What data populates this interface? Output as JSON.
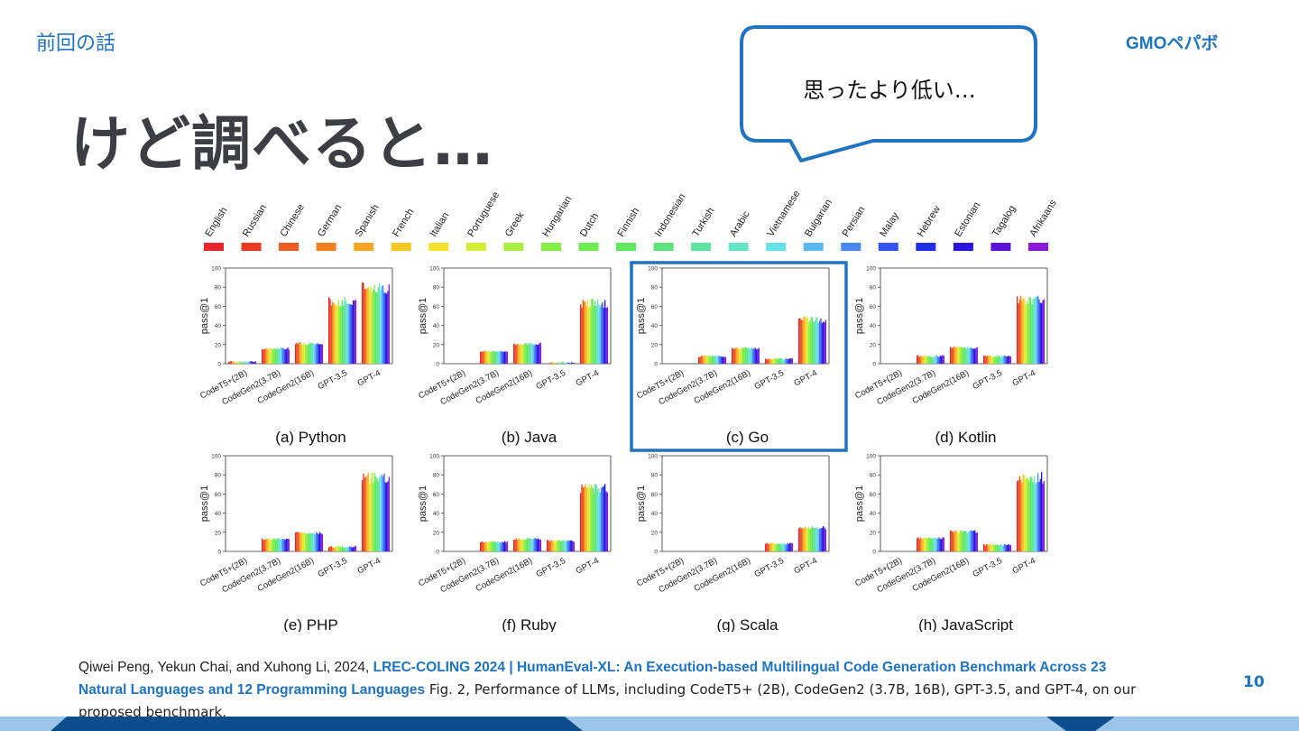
{
  "slide": {
    "section": "前回の話",
    "title": "けど調べると…",
    "bubble_text": "思ったより低い…",
    "page_number": "10",
    "logo": {
      "text": "GMOペパボ",
      "color": "#1f73c1"
    },
    "colors": {
      "accent": "#1f73c1",
      "title": "#3b3f45",
      "footer_dark": "#0e4d8c",
      "footer_light": "#9cc3e8"
    }
  },
  "reference": {
    "authors": "Qiwei Peng, Yekun Chai, and Xuhong Li, 2024, ",
    "link_text": "LREC-COLING 2024 | HumanEval-XL: An Execution-based Multilingual Code Generation Benchmark Across 23 Natural Languages and 12 Programming Languages",
    "caption": " Fig.  2,  Performance of LLMs, including CodeT5+ (2B), CodeGen2 (3.7B, 16B), GPT-3.5, and GPT-4, on our proposed benchmark."
  },
  "chart_data": {
    "type": "bar",
    "legend": {
      "languages": [
        "English",
        "Russian",
        "Chinese",
        "German",
        "Spanish",
        "French",
        "Italian",
        "Portuguese",
        "Greek",
        "Hungarian",
        "Dutch",
        "Finnish",
        "Indonesian",
        "Turkish",
        "Arabic",
        "Vietnamese",
        "Bulgarian",
        "Persian",
        "Malay",
        "Hebrew",
        "Estonian",
        "Tagalog",
        "Afrikaans"
      ],
      "colors": [
        "#e8262b",
        "#ea3a22",
        "#ee5a1f",
        "#f2801e",
        "#f5a623",
        "#f6c623",
        "#f2e32a",
        "#d7ed35",
        "#a9ef3f",
        "#85ef45",
        "#6ded4f",
        "#5fe85e",
        "#5ce47a",
        "#5fe3a0",
        "#64e5c6",
        "#66e1e8",
        "#5bb7f3",
        "#4a87f3",
        "#3256ef",
        "#2030e8",
        "#2a14de",
        "#5a12d8",
        "#8c1ad8"
      ]
    },
    "ylabel": "pass@1",
    "ylim": [
      0,
      100
    ],
    "yticks": [
      0,
      20,
      40,
      60,
      80,
      100
    ],
    "categories": [
      "CodeT5+(2B)",
      "CodeGen2(3.7B)",
      "CodeGen2(16B)",
      "GPT-3.5",
      "GPT-4"
    ],
    "highlight": "(c) Go",
    "panels": [
      {
        "title": "(a) Python",
        "values": [
          2,
          16,
          21,
          65,
          79
        ]
      },
      {
        "title": "(b) Java",
        "values": [
          0,
          13,
          21,
          1,
          63
        ]
      },
      {
        "title": "(c) Go",
        "values": [
          0,
          8,
          16,
          5,
          46
        ]
      },
      {
        "title": "(d) Kotlin",
        "values": [
          0,
          8,
          17,
          8,
          66
        ]
      },
      {
        "title": "(e) PHP",
        "values": [
          0,
          13,
          19,
          5,
          77
        ]
      },
      {
        "title": "(f) Ruby",
        "values": [
          0,
          10,
          13,
          11,
          66
        ]
      },
      {
        "title": "(g) Scala",
        "values": [
          0,
          0,
          0,
          8,
          25
        ]
      },
      {
        "title": "(h) JavaScript",
        "values": [
          0,
          14,
          21,
          7,
          77
        ]
      }
    ]
  }
}
